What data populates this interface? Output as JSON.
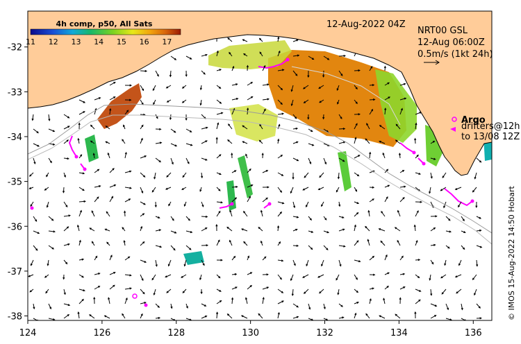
{
  "map": {
    "date_label": "12-Aug-2022 04Z",
    "product": {
      "line1": "NRT00 GSL",
      "line2": "12-Aug 06:00Z",
      "line3": "0.5m/s (1kt 24h)"
    },
    "argo_label": "Argo",
    "drifters_line1": "drifters@12h",
    "drifters_line2": "to 13/08 12Z",
    "credit": "© IMOS 15-Aug-2022 14:50 Hobart",
    "x_axis": {
      "ticks": [
        "124",
        "126",
        "128",
        "130",
        "132",
        "134",
        "136"
      ]
    },
    "y_axis": {
      "ticks": [
        "-32",
        "-33",
        "-34",
        "-35",
        "-36",
        "-37",
        "-38"
      ]
    },
    "extent": {
      "lon_min": 124,
      "lon_max": 136.5,
      "lat_min": -38.1,
      "lat_max": -31.2
    },
    "land_color": "#ffcc99",
    "argo_color": "#ff00ff"
  },
  "colorbar": {
    "title": "4h comp, p50, All Sats",
    "labels": [
      "11",
      "12",
      "13",
      "14",
      "15",
      "16",
      "17"
    ],
    "range": [
      11,
      17.6
    ]
  }
}
